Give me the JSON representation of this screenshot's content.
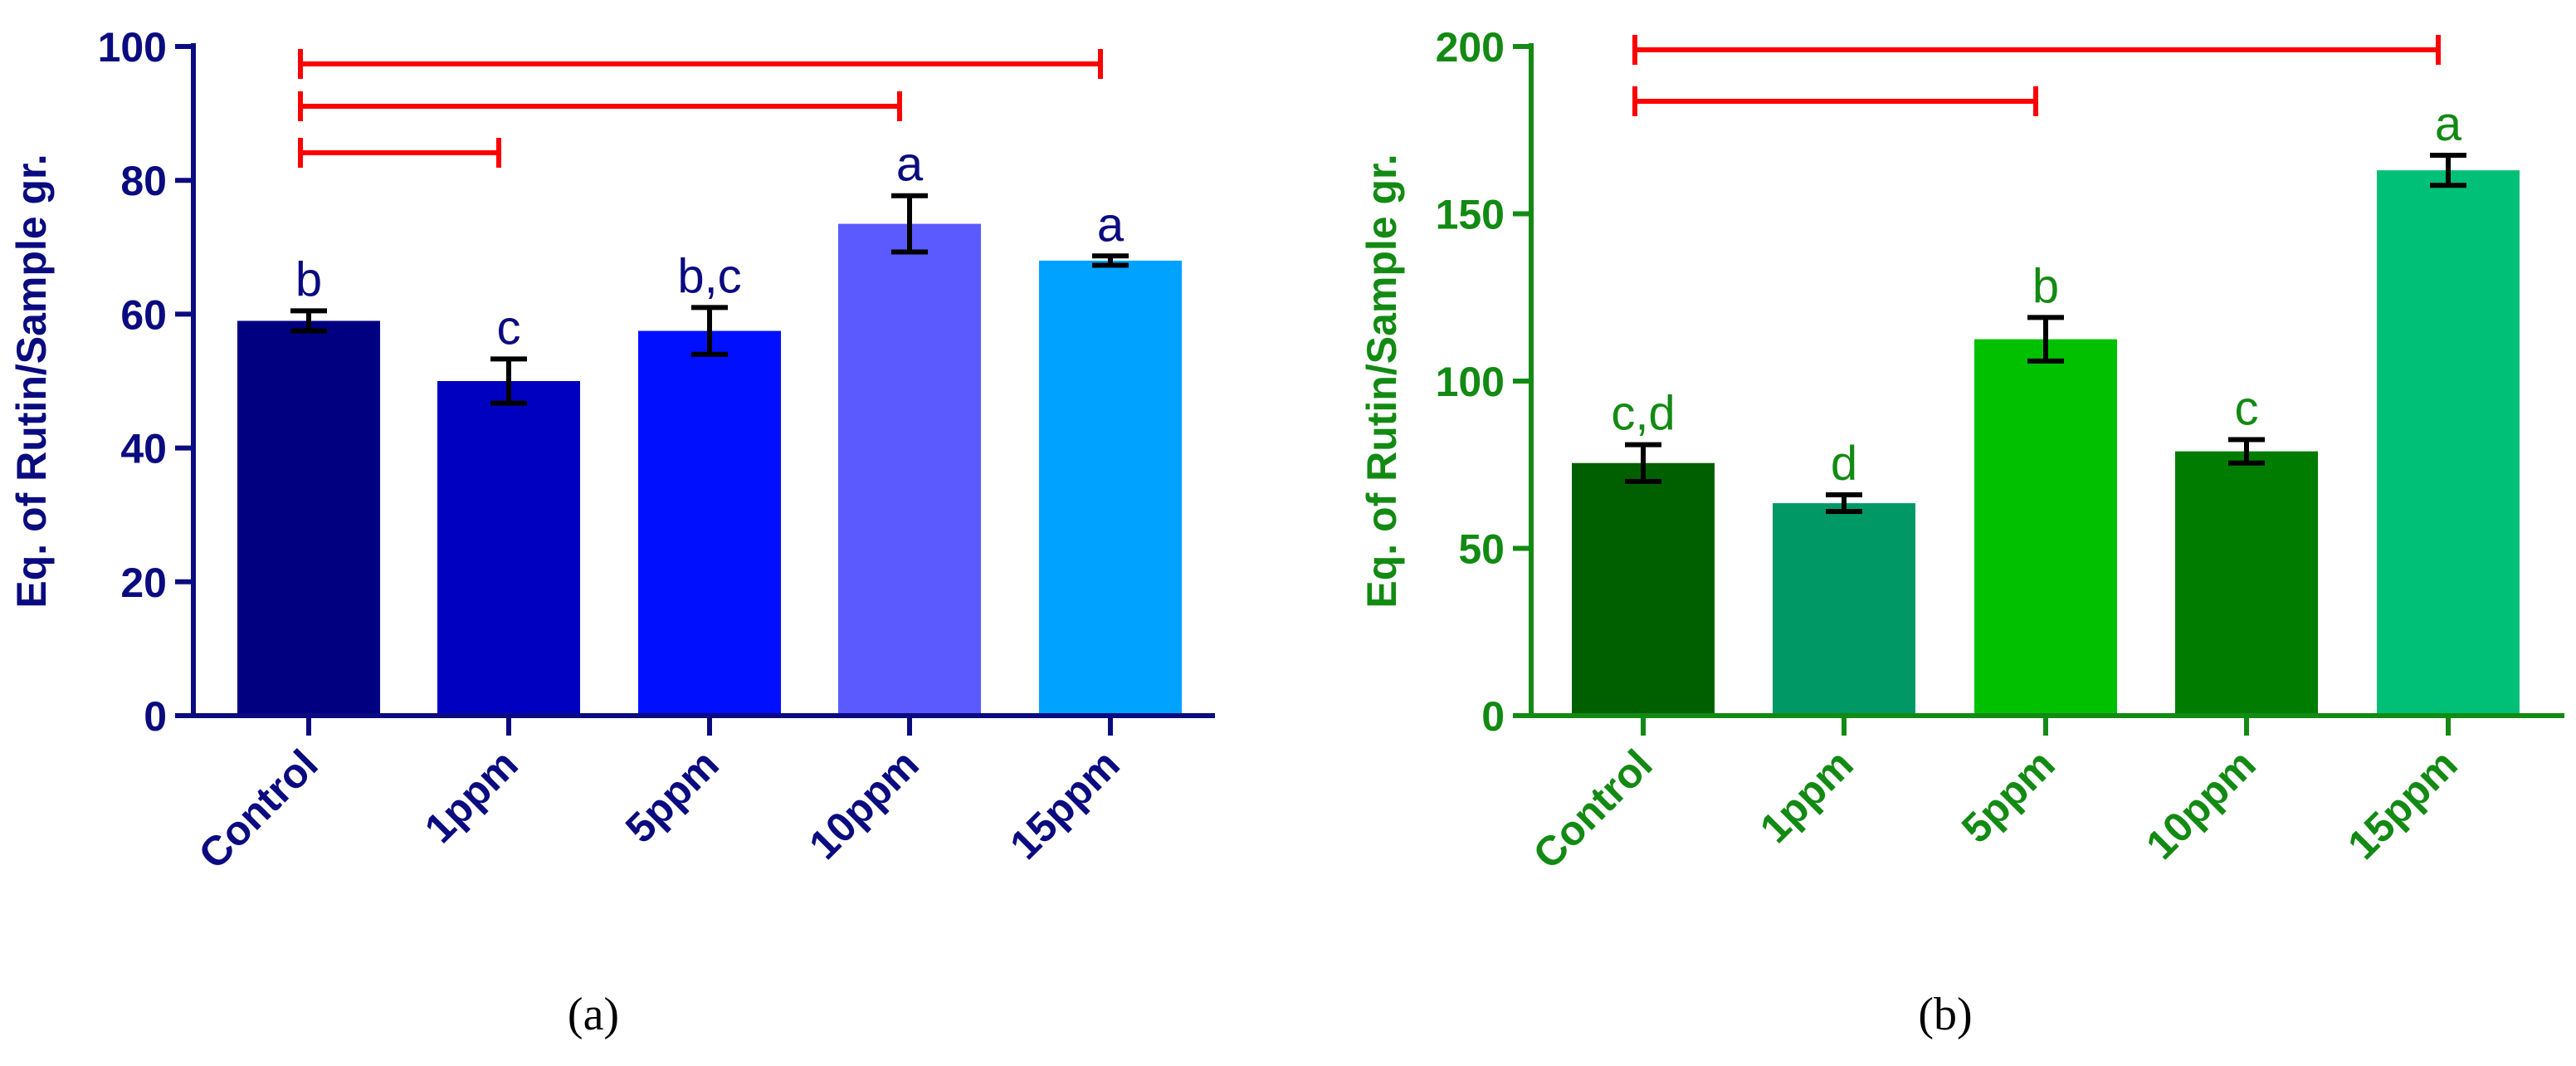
{
  "chart_data": [
    {
      "type": "bar",
      "panel_label": "a",
      "ylabel": "Eq. of Rutin/Sample gr.",
      "xlabel": "",
      "ylim": [
        0,
        100
      ],
      "yticks": [
        0,
        20,
        40,
        60,
        80,
        100
      ],
      "axis_color": "#0b0b80",
      "categories": [
        "Control",
        "1ppm",
        "5ppm",
        "10ppm",
        "15ppm"
      ],
      "values": [
        59,
        50,
        57.5,
        73.5,
        68
      ],
      "errors": [
        1.5,
        3.3,
        3.5,
        4.2,
        0.7
      ],
      "letters": [
        "b",
        "c",
        "b,c",
        "a",
        "a"
      ],
      "bar_colors": [
        "#000080",
        "#0000c0",
        "#0010ff",
        "#5a5aff",
        "#00a2ff"
      ],
      "brackets": [
        {
          "from": "Control",
          "to": "1ppm"
        },
        {
          "from": "Control",
          "to": "10ppm"
        },
        {
          "from": "Control",
          "to": "15ppm"
        }
      ],
      "bracket_color": "#ff0000"
    },
    {
      "type": "bar",
      "panel_label": "b",
      "ylabel": "Eq. of Rutin/Sample gr.",
      "xlabel": "",
      "ylim": [
        0,
        200
      ],
      "yticks": [
        0,
        50,
        100,
        150,
        200
      ],
      "axis_color": "#138a13",
      "categories": [
        "Control",
        "1ppm",
        "5ppm",
        "10ppm",
        "15ppm"
      ],
      "values": [
        75.5,
        63.5,
        112.5,
        79,
        163
      ],
      "errors": [
        5.5,
        2.5,
        6.5,
        3.5,
        4.5
      ],
      "letters": [
        "c,d",
        "d",
        "b",
        "c",
        "a"
      ],
      "bar_colors": [
        "#006000",
        "#009966",
        "#00c000",
        "#007c00",
        "#00c078"
      ],
      "brackets": [
        {
          "from": "Control",
          "to": "5ppm"
        },
        {
          "from": "Control",
          "to": "15ppm"
        }
      ],
      "bracket_color": "#ff0000"
    }
  ],
  "captions": [
    "(a)",
    "(b)"
  ]
}
